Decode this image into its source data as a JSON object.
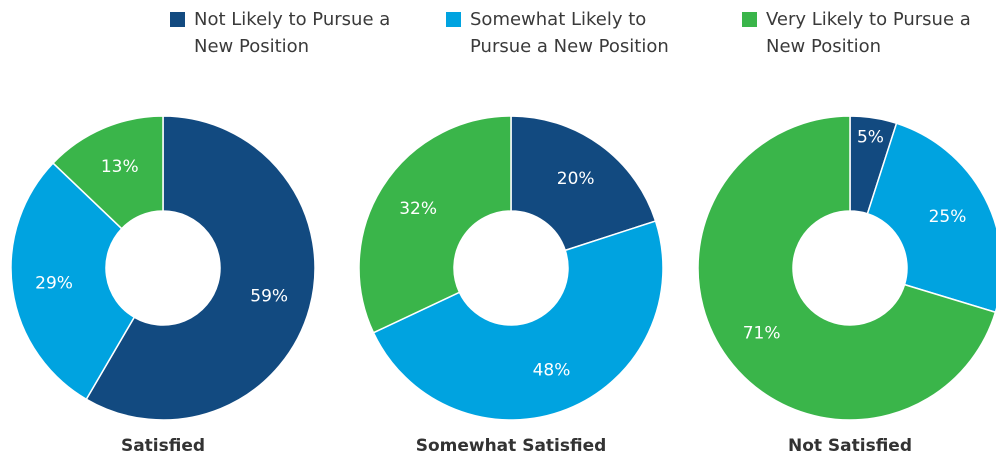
{
  "legend": {
    "categories": [
      "Not Likely to Pursue a New Position",
      "Somewhat Likely to Pursue a New Position",
      "Very Likely to Pursue a New Position"
    ],
    "colors": [
      "#124a80",
      "#00a3e0",
      "#3ab54a"
    ]
  },
  "chart_data": [
    {
      "type": "pie",
      "title": "Satisfied",
      "values": [
        59,
        29,
        13
      ],
      "value_labels": [
        "59%",
        "29%",
        "13%"
      ]
    },
    {
      "type": "pie",
      "title": "Somewhat Satisfied",
      "values": [
        20,
        48,
        32
      ],
      "value_labels": [
        "20%",
        "48%",
        "32%"
      ]
    },
    {
      "type": "pie",
      "title": "Not Satisfied",
      "values": [
        5,
        25,
        71
      ],
      "value_labels": [
        "5%",
        "25%",
        "71%"
      ]
    }
  ]
}
